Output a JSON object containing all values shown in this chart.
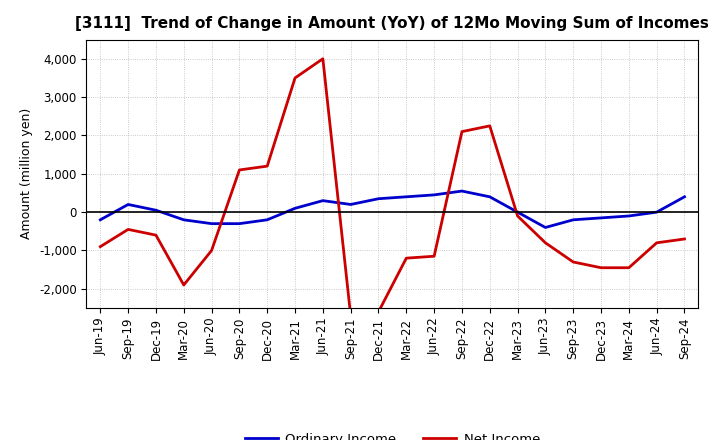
{
  "title": "[3111]  Trend of Change in Amount (YoY) of 12Mo Moving Sum of Incomes",
  "ylabel": "Amount (million yen)",
  "x_labels": [
    "Jun-19",
    "Sep-19",
    "Dec-19",
    "Mar-20",
    "Jun-20",
    "Sep-20",
    "Dec-20",
    "Mar-21",
    "Jun-21",
    "Sep-21",
    "Dec-21",
    "Mar-22",
    "Jun-22",
    "Sep-22",
    "Dec-22",
    "Mar-23",
    "Jun-23",
    "Sep-23",
    "Dec-23",
    "Mar-24",
    "Jun-24",
    "Sep-24"
  ],
  "ordinary_income": [
    -200,
    200,
    50,
    -200,
    -300,
    -300,
    -200,
    100,
    300,
    200,
    350,
    400,
    450,
    550,
    400,
    0,
    -400,
    -200,
    -150,
    -100,
    0,
    400
  ],
  "net_income": [
    -900,
    -450,
    -600,
    -1900,
    -1000,
    1100,
    1200,
    3500,
    4000,
    -2700,
    -2600,
    -1200,
    -1150,
    2100,
    2250,
    -100,
    -800,
    -1300,
    -1450,
    -1450,
    -800,
    -700
  ],
  "ordinary_color": "#0000cc",
  "net_color": "#cc0000",
  "line_width": 2.0,
  "ylim": [
    -2500,
    4500
  ],
  "yticks": [
    -2000,
    -1000,
    0,
    1000,
    2000,
    3000,
    4000
  ],
  "bg_color": "#ffffff",
  "grid_color": "#bbbbbb",
  "title_fontsize": 11,
  "axis_fontsize": 9,
  "tick_fontsize": 8.5,
  "legend_labels": [
    "Ordinary Income",
    "Net Income"
  ]
}
